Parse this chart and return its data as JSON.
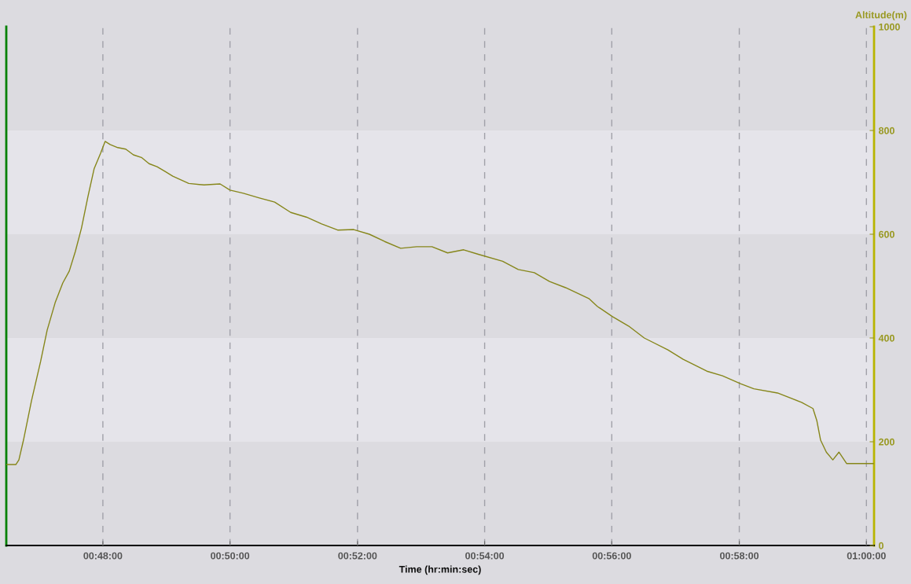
{
  "chart_data": {
    "type": "line",
    "xlabel": "Time (hr:min:sec)",
    "ylabel": "Altitude(m)",
    "xlim": [
      0.7747,
      1.002
    ],
    "ylim": [
      0,
      1000
    ],
    "xticks": [
      {
        "value": 0.8,
        "label": "00:48:00"
      },
      {
        "value": 0.8333,
        "label": "00:50:00"
      },
      {
        "value": 0.8667,
        "label": "00:52:00"
      },
      {
        "value": 0.9,
        "label": "00:54:00"
      },
      {
        "value": 0.9333,
        "label": "00:56:00"
      },
      {
        "value": 0.9667,
        "label": "00:58:00"
      },
      {
        "value": 1.0,
        "label": "01:00:00"
      }
    ],
    "yticks": [
      0,
      200,
      400,
      600,
      800,
      1000
    ],
    "grid": "x",
    "legend": false,
    "marker": "none",
    "line_style": "solid",
    "bands": [
      {
        "axis": "y",
        "from": 200,
        "to": 400,
        "color": "#e5e4ea"
      },
      {
        "axis": "y",
        "from": 600,
        "to": 800,
        "color": "#e5e4ea"
      }
    ],
    "series": [
      {
        "color": "#86861a",
        "x": [
          0.7747,
          0.7772,
          0.778,
          0.7792,
          0.7813,
          0.7837,
          0.7854,
          0.7875,
          0.7895,
          0.7912,
          0.7928,
          0.7944,
          0.7961,
          0.7977,
          0.7994,
          0.8006,
          0.8019,
          0.8039,
          0.806,
          0.808,
          0.8101,
          0.8121,
          0.8142,
          0.8163,
          0.8183,
          0.8225,
          0.8265,
          0.8307,
          0.8333,
          0.8368,
          0.841,
          0.845,
          0.8492,
          0.8533,
          0.8573,
          0.8615,
          0.8657,
          0.8698,
          0.8738,
          0.878,
          0.8822,
          0.8862,
          0.8903,
          0.8945,
          0.8985,
          0.9047,
          0.9088,
          0.913,
          0.917,
          0.9212,
          0.9273,
          0.9295,
          0.9335,
          0.9377,
          0.9418,
          0.948,
          0.952,
          0.9582,
          0.9623,
          0.967,
          0.9705,
          0.9767,
          0.983,
          0.986,
          0.987,
          0.988,
          0.9895,
          0.9912,
          0.9928,
          0.9948,
          0.9973,
          1.0018
        ],
        "values": [
          156,
          156,
          165,
          203,
          279,
          355,
          415,
          468,
          506,
          529,
          567,
          612,
          673,
          726,
          756,
          779,
          773,
          767,
          764,
          753,
          748,
          736,
          730,
          721,
          712,
          698,
          695,
          697,
          685,
          679,
          670,
          662,
          642,
          633,
          620,
          608,
          609,
          600,
          586,
          573,
          576,
          576,
          564,
          570,
          561,
          548,
          532,
          526,
          509,
          497,
          476,
          461,
          441,
          423,
          400,
          377,
          359,
          336,
          327,
          312,
          302,
          294,
          276,
          264,
          241,
          203,
          180,
          165,
          180,
          158,
          158,
          158
        ]
      }
    ]
  }
}
